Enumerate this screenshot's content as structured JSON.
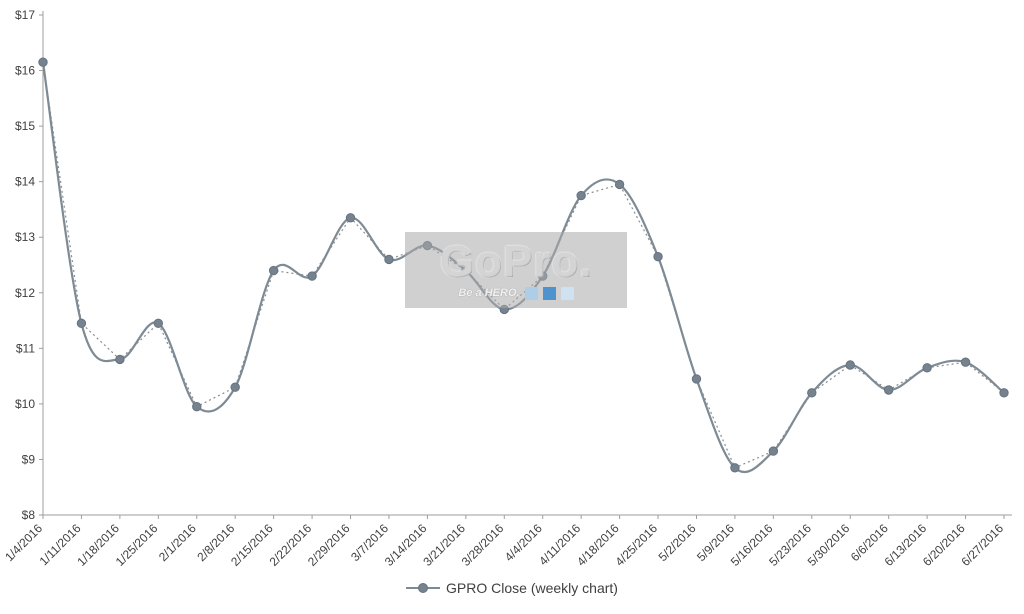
{
  "chart_data": {
    "type": "line",
    "title": "",
    "x": [
      "1/4/2016",
      "1/11/2016",
      "1/18/2016",
      "1/25/2016",
      "2/1/2016",
      "2/8/2016",
      "2/15/2016",
      "2/22/2016",
      "2/29/2016",
      "3/7/2016",
      "3/14/2016",
      "3/21/2016",
      "3/28/2016",
      "4/4/2016",
      "4/11/2016",
      "4/18/2016",
      "4/25/2016",
      "5/2/2016",
      "5/9/2016",
      "5/16/2016",
      "5/23/2016",
      "5/30/2016",
      "6/6/2016",
      "6/13/2016",
      "6/20/2016",
      "6/27/2016"
    ],
    "series": [
      {
        "name": "GPRO Close (weekly chart)",
        "values": [
          16.15,
          11.45,
          10.8,
          11.45,
          9.95,
          10.3,
          12.4,
          12.3,
          13.35,
          12.6,
          12.85,
          12.4,
          11.7,
          12.3,
          13.75,
          13.95,
          12.65,
          10.45,
          8.85,
          9.15,
          10.2,
          10.7,
          10.25,
          10.65,
          10.75,
          10.2
        ]
      }
    ],
    "ylim": [
      8,
      17
    ],
    "ytick_step": 1,
    "yticks": [
      "$8",
      "$9",
      "$10",
      "$11",
      "$12",
      "$13",
      "$14",
      "$15",
      "$16",
      "$17"
    ],
    "grid": "off",
    "legend_position": "bottom",
    "style_notes": "solid smoothed line plus dotted straight-segment line through same points, circular markers",
    "colors": {
      "line": "#7e8a94",
      "dotted": "#8c8c8c",
      "marker_fill": "#76838f",
      "marker_stroke": "#657380",
      "axis": "#9e9e9e",
      "tick_text": "#3f3f3f"
    }
  },
  "legend": {
    "label": "GPRO Close (weekly chart)"
  },
  "watermark": {
    "brand": "GoPro.",
    "tagline": "Be a HERO.",
    "square_colors": [
      "#aecde6",
      "#4f93ce",
      "#cfe2f2"
    ]
  }
}
